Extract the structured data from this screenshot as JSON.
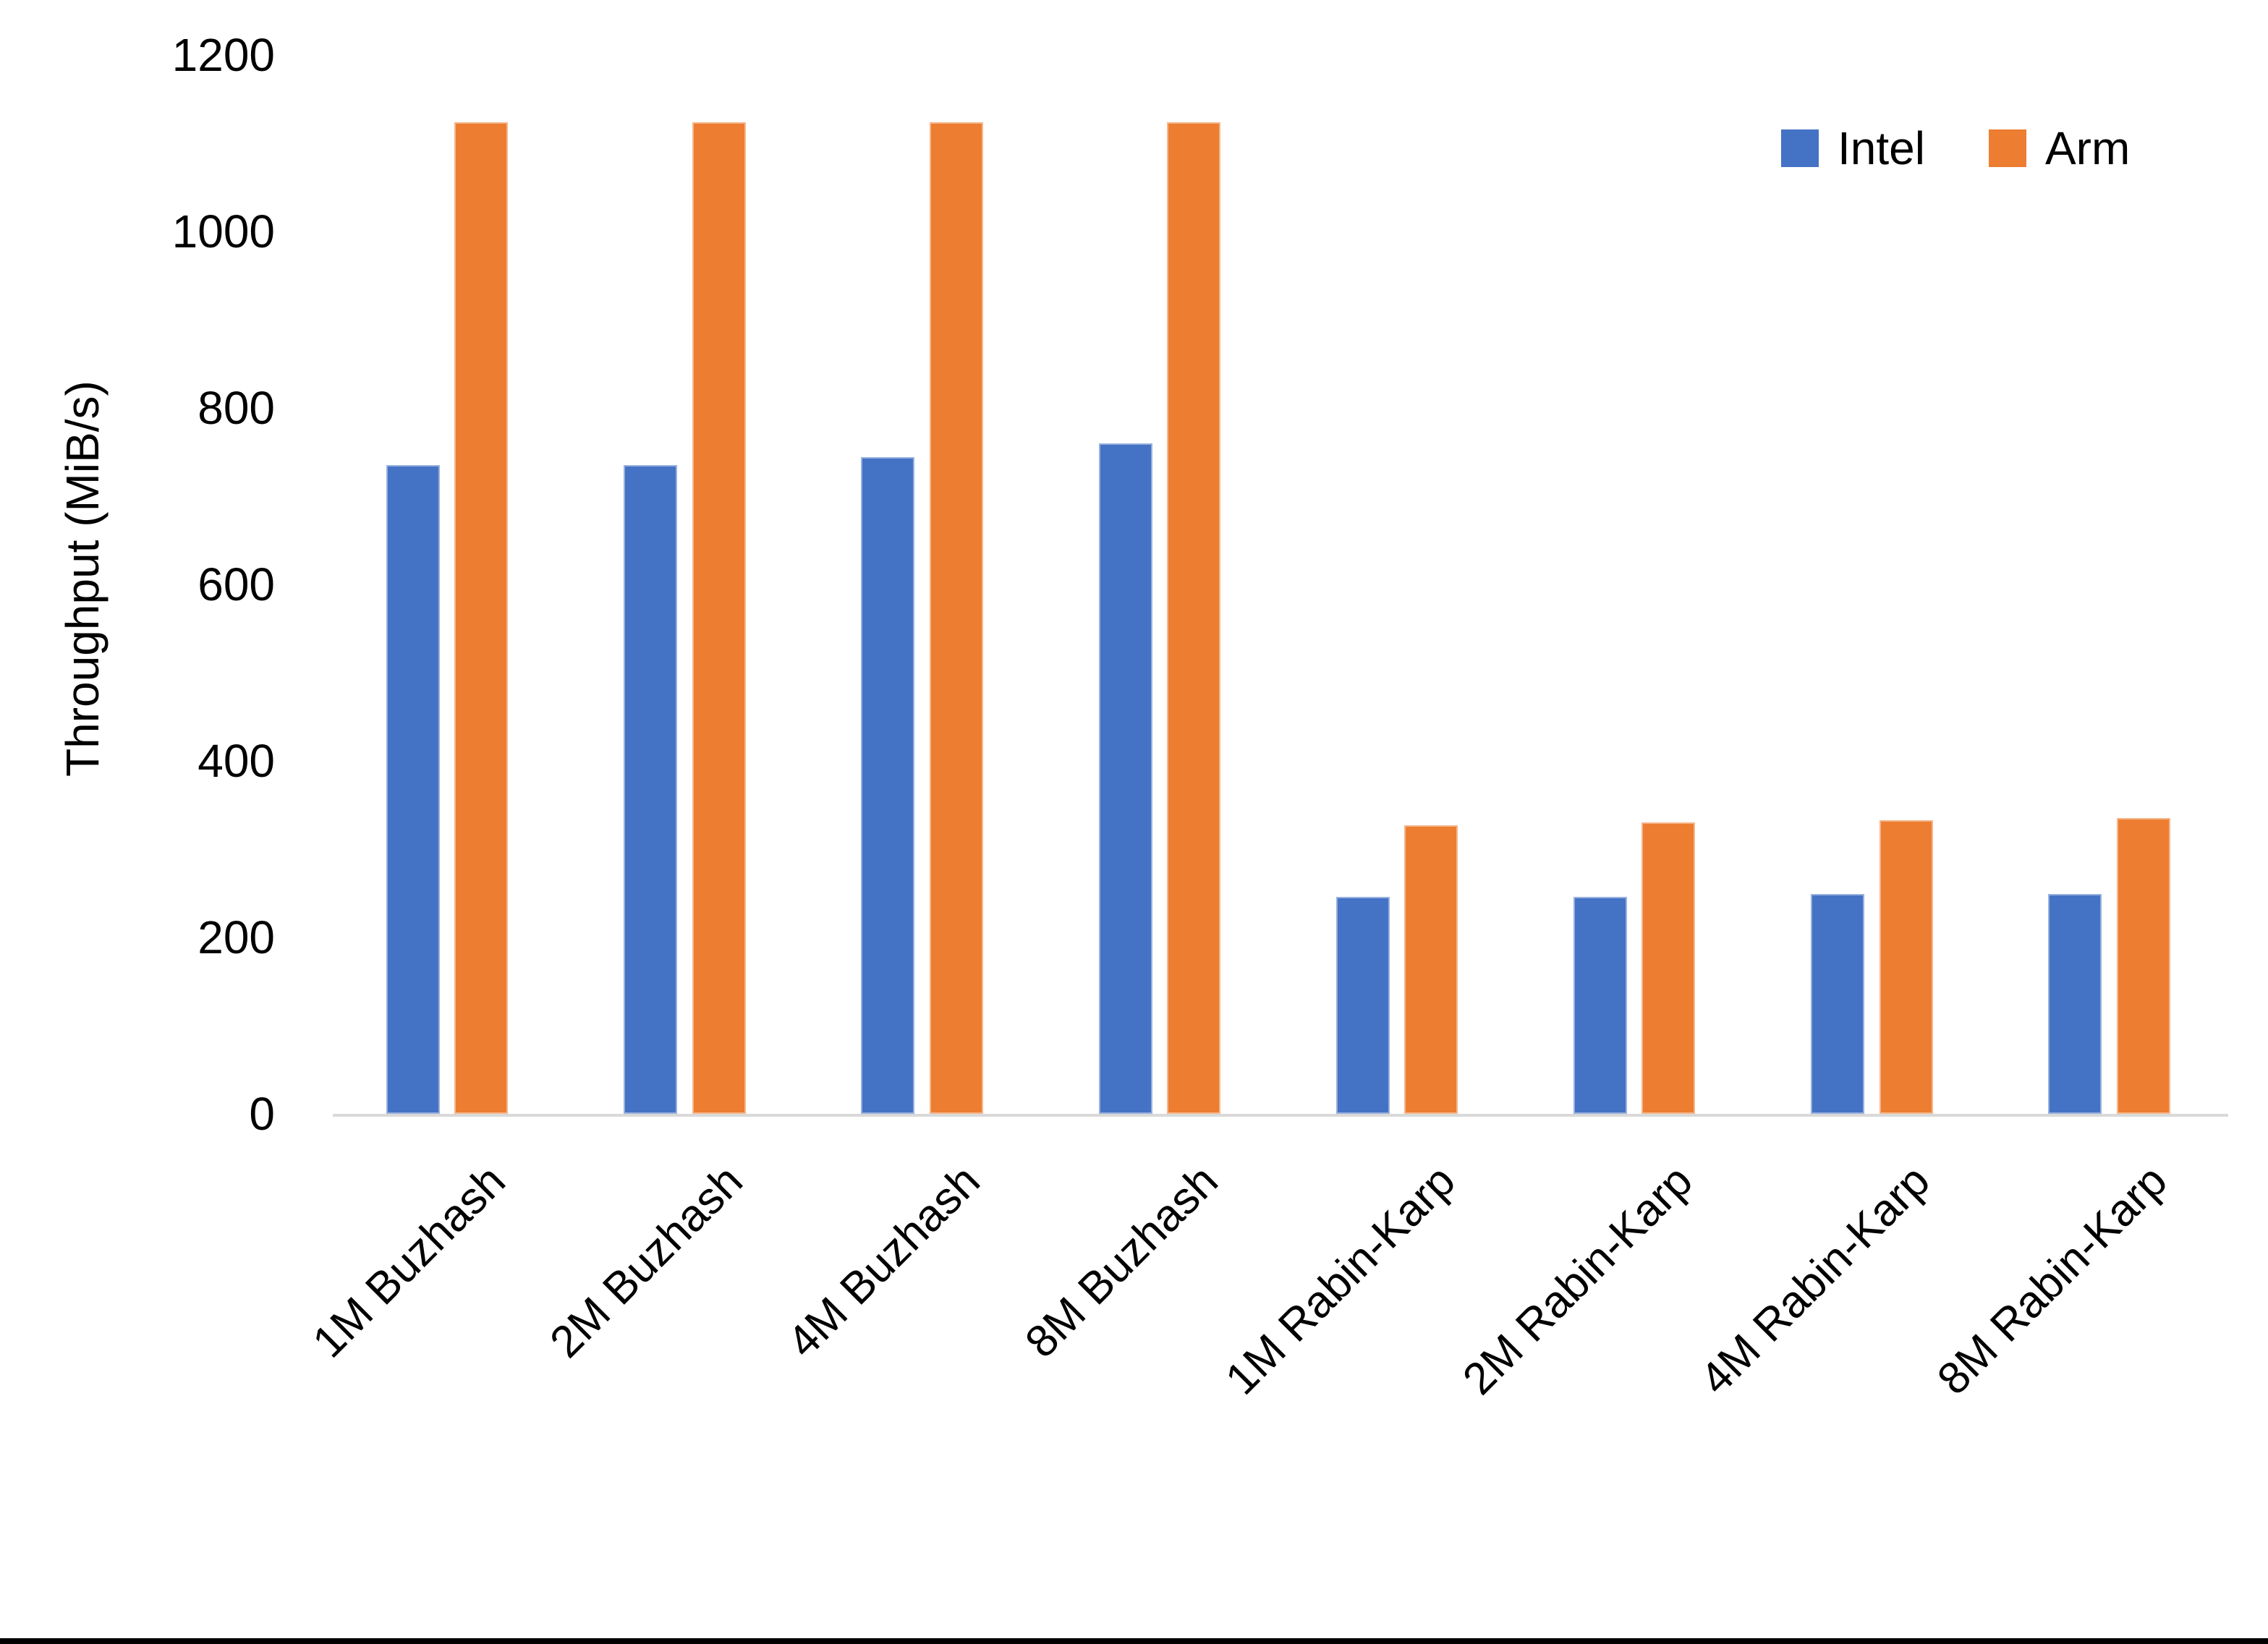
{
  "chart_data": {
    "type": "bar",
    "title": "",
    "categories": [
      "1M Buzhash",
      "2M Buzhash",
      "4M Buzhash",
      "8M Buzhash",
      "1M Rabin-Karp",
      "2M Rabin-Karp",
      "4M Rabin-Karp",
      "8M Rabin-Karp"
    ],
    "series": [
      {
        "name": "Intel",
        "color": "#4472C4",
        "values": [
          735,
          735,
          744,
          760,
          246,
          246,
          249,
          249
        ]
      },
      {
        "name": "Arm",
        "color": "#ED7D31",
        "values": [
          1124,
          1124,
          1124,
          1124,
          327,
          330,
          333,
          335
        ]
      }
    ],
    "ylabel": "Throughput (MiB/s)",
    "yticks": [
      0,
      200,
      400,
      600,
      800,
      1000,
      1200
    ],
    "ylim": [
      0,
      1200
    ],
    "grid": false,
    "legend_position": "top-right"
  },
  "colors": {
    "intel": "#4472C4",
    "arm": "#ED7D31",
    "axis_line": "#D9D9D9",
    "text": "#000000",
    "bottom_border": "#000000"
  }
}
